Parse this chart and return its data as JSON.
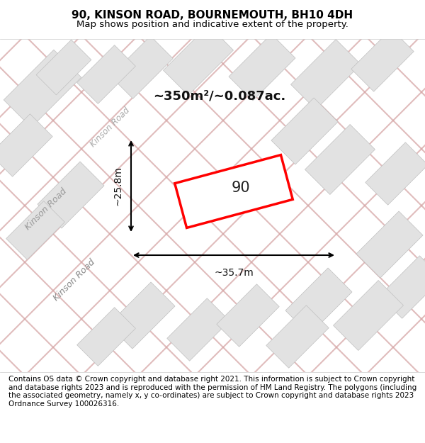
{
  "title_line1": "90, KINSON ROAD, BOURNEMOUTH, BH10 4DH",
  "title_line2": "Map shows position and indicative extent of the property.",
  "footer_text": "Contains OS data © Crown copyright and database right 2021. This information is subject to Crown copyright and database rights 2023 and is reproduced with the permission of HM Land Registry. The polygons (including the associated geometry, namely x, y co-ordinates) are subject to Crown copyright and database rights 2023 Ordnance Survey 100026316.",
  "area_label": "~350m²/~0.087ac.",
  "width_label": "~35.7m",
  "height_label": "~25.8m",
  "property_number": "90",
  "road_label1": "Kinson Road",
  "road_label2": "Kinson Road",
  "bg_color": "#f8f8f8",
  "map_bg": "#f0f0f0",
  "building_fill": "#e0e0e0",
  "building_edge": "#cccccc",
  "road_line_color": "#d4a0a0",
  "property_outline_color": "#ff0000",
  "annotation_color": "#000000",
  "title_fontsize": 11,
  "subtitle_fontsize": 9.5,
  "footer_fontsize": 7.5
}
